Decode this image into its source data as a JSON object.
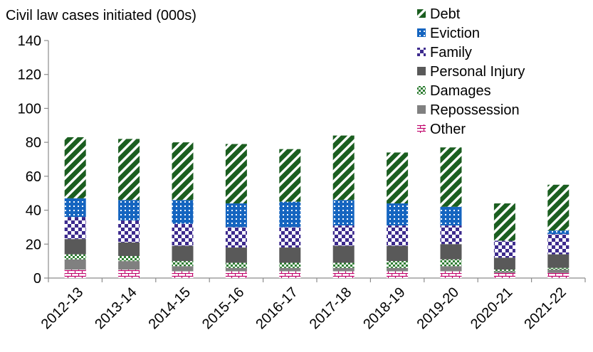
{
  "chart_data": {
    "type": "bar",
    "stacked": true,
    "title": "Civil law cases initiated (000s)",
    "categories": [
      "2012-13",
      "2013-14",
      "2014-15",
      "2015-16",
      "2016-17",
      "2017-18",
      "2018-19",
      "2019-20",
      "2020-21",
      "2021-22"
    ],
    "ylim": [
      0,
      140
    ],
    "yticks": [
      "0",
      "20",
      "40",
      "60",
      "80",
      "100",
      "120",
      "140"
    ],
    "grid": false,
    "legend_position": "top-right",
    "series": [
      {
        "name": "Other",
        "color": "#c0006a",
        "pattern": "brick",
        "values": [
          5,
          5,
          4,
          4,
          4,
          4,
          4,
          4,
          3,
          3
        ]
      },
      {
        "name": "Repossession",
        "color": "#808080",
        "pattern": "solid",
        "values": [
          6,
          5,
          3,
          2,
          2,
          2,
          2,
          3,
          1,
          2
        ]
      },
      {
        "name": "Damages",
        "color": "#2e7d32",
        "pattern": "dots",
        "values": [
          3,
          3,
          3,
          3,
          3,
          3,
          4,
          4,
          1,
          1
        ]
      },
      {
        "name": "Personal Injury",
        "color": "#595959",
        "pattern": "solid",
        "values": [
          9,
          8,
          9,
          9,
          9,
          10,
          9,
          9,
          7,
          8
        ]
      },
      {
        "name": "Family",
        "color": "#3d2b8e",
        "pattern": "checker",
        "values": [
          13,
          13,
          13,
          12,
          12,
          12,
          12,
          11,
          10,
          12
        ]
      },
      {
        "name": "Eviction",
        "color": "#1565c0",
        "pattern": "dots",
        "values": [
          11,
          12,
          14,
          14,
          15,
          15,
          13,
          11,
          0,
          2
        ]
      },
      {
        "name": "Debt",
        "color": "#1b5e20",
        "pattern": "diagonal",
        "values": [
          36,
          36,
          34,
          35,
          31,
          38,
          30,
          35,
          22,
          27
        ]
      }
    ]
  }
}
